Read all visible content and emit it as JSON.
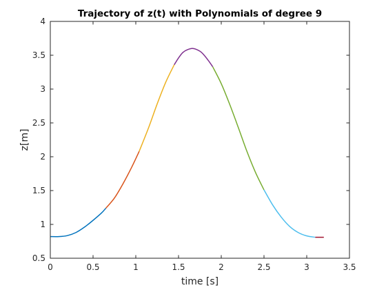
{
  "chart_data": {
    "type": "line",
    "title": "Trajectory of z(t) with Polynomials of degree 9",
    "xlabel": "time [s]",
    "ylabel": "z[m]",
    "xlim": [
      0,
      3.5
    ],
    "ylim": [
      0.5,
      4
    ],
    "xticks": [
      "0",
      "0.5",
      "1",
      "1.5",
      "2",
      "2.5",
      "3",
      "3.5"
    ],
    "yticks": [
      "0.5",
      "1",
      "1.5",
      "2",
      "2.5",
      "3",
      "3.5",
      "4"
    ],
    "grid": false,
    "series": [
      {
        "color": "#0072BD",
        "x": [
          0,
          0.1,
          0.2,
          0.3,
          0.4,
          0.5,
          0.6,
          0.65
        ],
        "y": [
          0.82,
          0.82,
          0.835,
          0.88,
          0.96,
          1.06,
          1.17,
          1.24
        ]
      },
      {
        "color": "#D95319",
        "x": [
          0.65,
          0.75,
          0.85,
          0.95,
          1.04
        ],
        "y": [
          1.24,
          1.39,
          1.6,
          1.84,
          2.08
        ]
      },
      {
        "color": "#EDB120",
        "x": [
          1.04,
          1.15,
          1.25,
          1.35,
          1.45
        ],
        "y": [
          2.08,
          2.43,
          2.78,
          3.1,
          3.36
        ]
      },
      {
        "color": "#7E2F8E",
        "x": [
          1.45,
          1.5,
          1.55,
          1.6,
          1.67,
          1.75,
          1.8,
          1.85,
          1.9
        ],
        "y": [
          3.36,
          3.46,
          3.54,
          3.58,
          3.6,
          3.56,
          3.5,
          3.42,
          3.33
        ]
      },
      {
        "color": "#77AC30",
        "x": [
          1.9,
          2.0,
          2.1,
          2.2,
          2.3,
          2.4,
          2.5
        ],
        "y": [
          3.33,
          3.08,
          2.77,
          2.43,
          2.08,
          1.77,
          1.51
        ]
      },
      {
        "color": "#4DBEEE",
        "x": [
          2.5,
          2.6,
          2.7,
          2.8,
          2.9,
          3.0,
          3.1
        ],
        "y": [
          1.51,
          1.29,
          1.11,
          0.97,
          0.88,
          0.83,
          0.81
        ]
      },
      {
        "color": "#A2142F",
        "x": [
          3.1,
          3.15,
          3.2
        ],
        "y": [
          0.81,
          0.81,
          0.81
        ]
      }
    ]
  }
}
